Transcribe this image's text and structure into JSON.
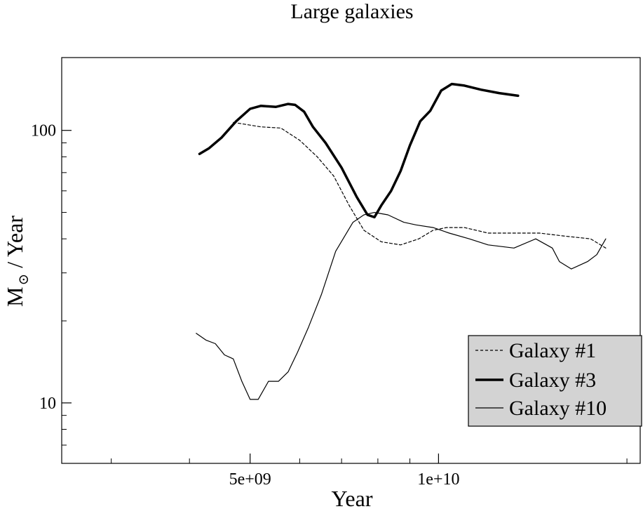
{
  "chart_data": {
    "type": "line",
    "title": "Large galaxies",
    "xlabel": "Year",
    "ylabel_main": "M",
    "ylabel_sub": "⊙",
    "ylabel_suffix": " / Year",
    "x_scale": "log",
    "y_scale": "log",
    "xlim": [
      2500000000.0,
      21000000000.0
    ],
    "ylim": [
      6,
      185
    ],
    "x_ticks": [
      {
        "value": 5000000000.0,
        "label": "5e+09"
      },
      {
        "value": 10000000000.0,
        "label": "1e+10"
      }
    ],
    "x_minor_ticks": [
      3000000000.0,
      4000000000.0,
      6000000000.0,
      7000000000.0,
      8000000000.0,
      9000000000.0,
      20000000000.0
    ],
    "y_ticks": [
      {
        "value": 10,
        "label": "10"
      },
      {
        "value": 100,
        "label": "100"
      }
    ],
    "y_minor_ticks": [
      7,
      8,
      9,
      20,
      30,
      40,
      50,
      60,
      70,
      80,
      90
    ],
    "legend_position": "bottom-right",
    "series": [
      {
        "name": "Galaxy #1",
        "style": "dashed",
        "x": [
          4700000000.0,
          5200000000.0,
          5600000000.0,
          6000000000.0,
          6400000000.0,
          6800000000.0,
          7200000000.0,
          7600000000.0,
          8100000000.0,
          8700000000.0,
          9300000000.0,
          9800000000.0,
          10300000000.0,
          11000000000.0,
          12000000000.0,
          13000000000.0,
          14500000000.0,
          15800000000.0,
          17500000000.0,
          18500000000.0
        ],
        "y": [
          107,
          103,
          102,
          92,
          80,
          68,
          53,
          43,
          39,
          38,
          40,
          43,
          44,
          44,
          42,
          42,
          42,
          41,
          40,
          37
        ]
      },
      {
        "name": "Galaxy #3",
        "style": "thick",
        "x": [
          4150000000.0,
          4300000000.0,
          4500000000.0,
          4750000000.0,
          5000000000.0,
          5200000000.0,
          5500000000.0,
          5750000000.0,
          5900000000.0,
          6100000000.0,
          6300000000.0,
          6600000000.0,
          7000000000.0,
          7400000000.0,
          7700000000.0,
          7900000000.0,
          8100000000.0,
          8400000000.0,
          8700000000.0,
          9000000000.0,
          9350000000.0,
          9700000000.0,
          10100000000.0,
          10500000000.0,
          11000000000.0,
          11700000000.0,
          12500000000.0,
          13400000000.0
        ],
        "y": [
          82,
          86,
          94,
          108,
          120,
          123,
          122,
          125,
          124,
          117,
          103,
          90,
          73,
          57,
          49,
          48,
          53,
          60,
          71,
          88,
          108,
          118,
          140,
          148,
          146,
          141,
          137,
          134
        ]
      },
      {
        "name": "Galaxy #10",
        "style": "thin",
        "x": [
          4100000000.0,
          4250000000.0,
          4400000000.0,
          4550000000.0,
          4700000000.0,
          4850000000.0,
          5000000000.0,
          5150000000.0,
          5350000000.0,
          5550000000.0,
          5750000000.0,
          5950000000.0,
          6200000000.0,
          6500000000.0,
          6850000000.0,
          7300000000.0,
          7600000000.0,
          7900000000.0,
          8300000000.0,
          8800000000.0,
          9200000000.0,
          9800000000.0,
          10400000000.0,
          11200000000.0,
          12000000000.0,
          13200000000.0,
          14300000000.0,
          15200000000.0,
          15600000000.0,
          16300000000.0,
          17300000000.0,
          17900000000.0,
          18500000000.0
        ],
        "y": [
          18,
          17,
          16.5,
          15,
          14.5,
          12,
          10.3,
          10.3,
          12,
          12,
          13,
          15.3,
          19,
          25,
          36,
          46,
          49,
          50,
          49,
          46,
          45,
          44,
          42,
          40,
          38,
          37,
          40,
          37,
          33,
          31,
          33,
          35,
          40
        ]
      }
    ]
  }
}
